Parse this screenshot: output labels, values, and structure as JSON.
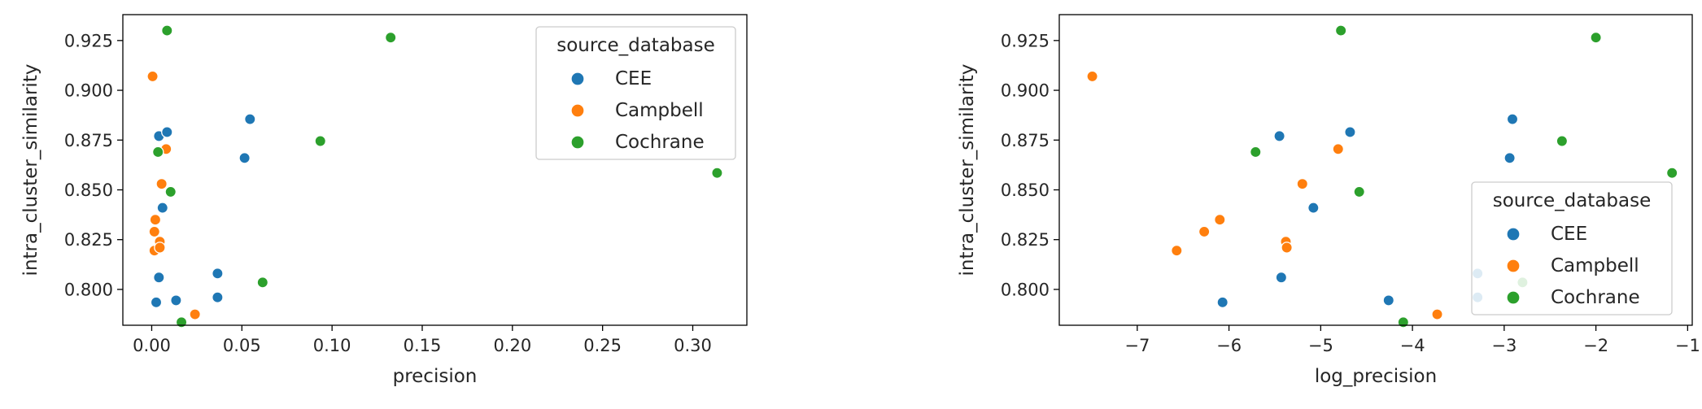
{
  "chart_data": [
    {
      "type": "scatter",
      "xlabel": "precision",
      "ylabel": "intra_cluster_similarity",
      "xlim": [
        -0.016,
        0.33
      ],
      "ylim": [
        0.782,
        0.938
      ],
      "xticks": [
        "0.00",
        "0.05",
        "0.10",
        "0.15",
        "0.20",
        "0.25",
        "0.30"
      ],
      "xtick_values": [
        0,
        0.05,
        0.1,
        0.15,
        0.2,
        0.25,
        0.3
      ],
      "yticks": [
        "0.800",
        "0.825",
        "0.850",
        "0.875",
        "0.900",
        "0.925"
      ],
      "ytick_values": [
        0.8,
        0.825,
        0.85,
        0.875,
        0.9,
        0.925
      ],
      "grid": false,
      "legend": {
        "title": "source_database",
        "placement": "top-right"
      },
      "series": [
        {
          "name": "CEE",
          "color": "#1f77b4",
          "points": [
            {
              "x": 0.0025,
              "y": 0.7935
            },
            {
              "x": 0.004,
              "y": 0.806
            },
            {
              "x": 0.006,
              "y": 0.841
            },
            {
              "x": 0.004,
              "y": 0.877
            },
            {
              "x": 0.0085,
              "y": 0.879
            },
            {
              "x": 0.0135,
              "y": 0.7945
            },
            {
              "x": 0.0365,
              "y": 0.808
            },
            {
              "x": 0.0365,
              "y": 0.796
            },
            {
              "x": 0.0515,
              "y": 0.866
            },
            {
              "x": 0.0545,
              "y": 0.8855
            }
          ]
        },
        {
          "name": "Campbell",
          "color": "#ff7f0e",
          "points": [
            {
              "x": 0.0005,
              "y": 0.907
            },
            {
              "x": 0.0015,
              "y": 0.8195
            },
            {
              "x": 0.0015,
              "y": 0.829
            },
            {
              "x": 0.002,
              "y": 0.835
            },
            {
              "x": 0.0045,
              "y": 0.824
            },
            {
              "x": 0.0045,
              "y": 0.821
            },
            {
              "x": 0.0055,
              "y": 0.853
            },
            {
              "x": 0.008,
              "y": 0.8705
            },
            {
              "x": 0.024,
              "y": 0.7875
            }
          ]
        },
        {
          "name": "Cochrane",
          "color": "#2ca02c",
          "points": [
            {
              "x": 0.0085,
              "y": 0.93
            },
            {
              "x": 0.0035,
              "y": 0.869
            },
            {
              "x": 0.0105,
              "y": 0.849
            },
            {
              "x": 0.0165,
              "y": 0.7835
            },
            {
              "x": 0.0615,
              "y": 0.8035
            },
            {
              "x": 0.0935,
              "y": 0.8745
            },
            {
              "x": 0.1325,
              "y": 0.9265
            },
            {
              "x": 0.3135,
              "y": 0.8585
            }
          ]
        }
      ]
    },
    {
      "type": "scatter",
      "xlabel": "log_precision",
      "ylabel": "intra_cluster_similarity",
      "xlim": [
        -7.85,
        -0.95
      ],
      "ylim": [
        0.782,
        0.938
      ],
      "xticks": [
        "−7",
        "−6",
        "−5",
        "−4",
        "−3",
        "−2",
        "−1"
      ],
      "xtick_values": [
        -7,
        -6,
        -5,
        -4,
        -3,
        -2,
        -1
      ],
      "yticks": [
        "0.800",
        "0.825",
        "0.850",
        "0.875",
        "0.900",
        "0.925"
      ],
      "ytick_values": [
        0.8,
        0.825,
        0.85,
        0.875,
        0.9,
        0.925
      ],
      "grid": false,
      "legend": {
        "title": "source_database",
        "placement": "bottom-right"
      },
      "series": [
        {
          "name": "CEE",
          "color": "#1f77b4",
          "points": [
            {
              "x": -6.07,
              "y": 0.7935
            },
            {
              "x": -5.43,
              "y": 0.806
            },
            {
              "x": -5.08,
              "y": 0.841
            },
            {
              "x": -5.45,
              "y": 0.877
            },
            {
              "x": -4.68,
              "y": 0.879
            },
            {
              "x": -4.26,
              "y": 0.7945
            },
            {
              "x": -3.29,
              "y": 0.808
            },
            {
              "x": -3.29,
              "y": 0.796
            },
            {
              "x": -2.94,
              "y": 0.866
            },
            {
              "x": -2.91,
              "y": 0.8855
            }
          ]
        },
        {
          "name": "Campbell",
          "color": "#ff7f0e",
          "points": [
            {
              "x": -7.49,
              "y": 0.907
            },
            {
              "x": -6.57,
              "y": 0.8195
            },
            {
              "x": -6.27,
              "y": 0.829
            },
            {
              "x": -6.1,
              "y": 0.835
            },
            {
              "x": -5.38,
              "y": 0.824
            },
            {
              "x": -5.37,
              "y": 0.821
            },
            {
              "x": -5.2,
              "y": 0.853
            },
            {
              "x": -4.81,
              "y": 0.8705
            },
            {
              "x": -3.73,
              "y": 0.7875
            }
          ]
        },
        {
          "name": "Cochrane",
          "color": "#2ca02c",
          "points": [
            {
              "x": -4.78,
              "y": 0.93
            },
            {
              "x": -5.71,
              "y": 0.869
            },
            {
              "x": -4.58,
              "y": 0.849
            },
            {
              "x": -4.1,
              "y": 0.7835
            },
            {
              "x": -2.8,
              "y": 0.8035
            },
            {
              "x": -2.37,
              "y": 0.8745
            },
            {
              "x": -2.0,
              "y": 0.9265
            },
            {
              "x": -1.17,
              "y": 0.8585
            }
          ]
        }
      ]
    }
  ]
}
